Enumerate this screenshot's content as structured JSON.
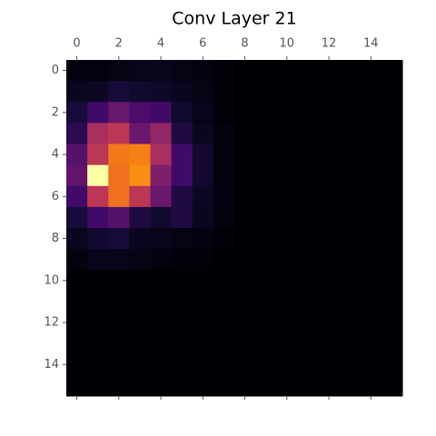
{
  "chart_data": {
    "type": "heatmap",
    "title": "Conv Layer 21",
    "colormap": "inferno",
    "xlim": [
      -0.5,
      15.5
    ],
    "ylim": [
      -0.5,
      15.5
    ],
    "y_inverted": true,
    "xticks": [
      0,
      2,
      4,
      6,
      8,
      10,
      12,
      14
    ],
    "yticks": [
      0,
      2,
      4,
      6,
      8,
      10,
      12,
      14
    ],
    "values": [
      [
        0.02,
        0.02,
        0.03,
        0.04,
        0.04,
        0.03,
        0.02,
        0.01,
        0,
        0,
        0,
        0,
        0,
        0,
        0,
        0
      ],
      [
        0.05,
        0.06,
        0.1,
        0.08,
        0.07,
        0.05,
        0.03,
        0.01,
        0,
        0,
        0,
        0,
        0,
        0,
        0,
        0
      ],
      [
        0.1,
        0.2,
        0.3,
        0.22,
        0.2,
        0.08,
        0.04,
        0.01,
        0,
        0,
        0,
        0,
        0,
        0,
        0,
        0
      ],
      [
        0.15,
        0.45,
        0.5,
        0.3,
        0.4,
        0.12,
        0.05,
        0.02,
        0,
        0,
        0,
        0,
        0,
        0,
        0,
        0
      ],
      [
        0.25,
        0.5,
        0.7,
        0.72,
        0.45,
        0.2,
        0.08,
        0.02,
        0,
        0,
        0,
        0,
        0,
        0,
        0,
        0
      ],
      [
        0.28,
        1.0,
        0.68,
        0.75,
        0.35,
        0.2,
        0.08,
        0.02,
        0,
        0,
        0,
        0,
        0,
        0,
        0,
        0
      ],
      [
        0.2,
        0.5,
        0.68,
        0.5,
        0.3,
        0.12,
        0.06,
        0.02,
        0,
        0,
        0,
        0,
        0,
        0,
        0,
        0
      ],
      [
        0.1,
        0.2,
        0.25,
        0.12,
        0.08,
        0.12,
        0.05,
        0.02,
        0,
        0,
        0,
        0,
        0,
        0,
        0,
        0
      ],
      [
        0.05,
        0.08,
        0.1,
        0.05,
        0.04,
        0.03,
        0.02,
        0.01,
        0,
        0,
        0,
        0,
        0,
        0,
        0,
        0
      ],
      [
        0.02,
        0.04,
        0.04,
        0.03,
        0.02,
        0.01,
        0.01,
        0,
        0,
        0,
        0,
        0,
        0,
        0,
        0,
        0
      ],
      [
        0,
        0,
        0,
        0,
        0,
        0,
        0,
        0,
        0,
        0,
        0,
        0,
        0,
        0,
        0,
        0
      ],
      [
        0,
        0,
        0,
        0,
        0,
        0,
        0,
        0,
        0,
        0,
        0,
        0,
        0,
        0,
        0,
        0
      ],
      [
        0,
        0,
        0,
        0,
        0,
        0,
        0,
        0,
        0,
        0,
        0,
        0,
        0,
        0,
        0,
        0
      ],
      [
        0,
        0,
        0,
        0,
        0,
        0,
        0,
        0,
        0,
        0,
        0,
        0,
        0,
        0,
        0,
        0
      ],
      [
        0,
        0,
        0,
        0,
        0,
        0,
        0,
        0,
        0,
        0,
        0,
        0,
        0,
        0,
        0,
        0
      ],
      [
        0,
        0,
        0,
        0,
        0,
        0,
        0,
        0,
        0,
        0,
        0,
        0,
        0,
        0,
        0,
        0
      ]
    ]
  }
}
